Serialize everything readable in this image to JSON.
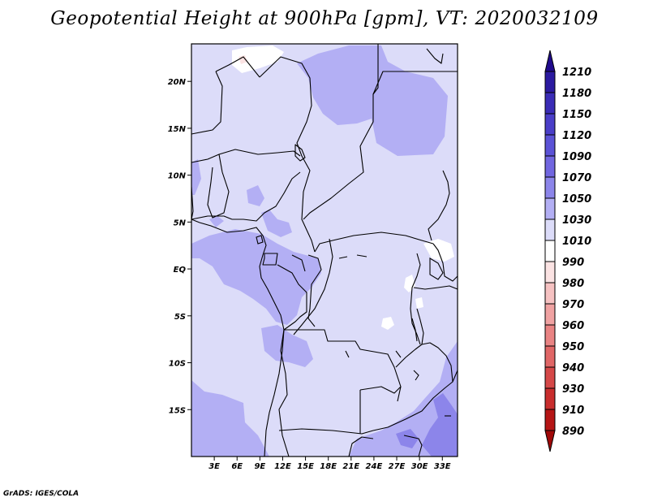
{
  "title": "Geopotential Height at 900hPa [gpm], VT: 2020032109",
  "footer": "GrADS: IGES/COLA",
  "map": {
    "lon_range": [
      0,
      35
    ],
    "lat_range": [
      -20,
      24
    ],
    "x_ticks": [
      "3E",
      "6E",
      "9E",
      "12E",
      "15E",
      "18E",
      "21E",
      "24E",
      "27E",
      "30E",
      "33E"
    ],
    "y_ticks": [
      "20N",
      "15N",
      "10N",
      "5N",
      "EQ",
      "5S",
      "10S",
      "15S"
    ],
    "background_level_color": "#dcdcf9"
  },
  "colorbar": {
    "levels": [
      "1210",
      "1180",
      "1150",
      "1120",
      "1090",
      "1070",
      "1050",
      "1030",
      "1010",
      "990",
      "980",
      "970",
      "960",
      "950",
      "940",
      "930",
      "910",
      "890"
    ],
    "colors": [
      "#1f0a8c",
      "#2b1aa0",
      "#3a2cb6",
      "#4a3ec8",
      "#5b52d6",
      "#7166e0",
      "#8c85ea",
      "#b3aff4",
      "#dcdcf9",
      "#ffffff",
      "#fbe3e3",
      "#f6c2c2",
      "#f0a2a2",
      "#e98383",
      "#e06666",
      "#d54848",
      "#c82d2d",
      "#b51515",
      "#a00808"
    ]
  }
}
